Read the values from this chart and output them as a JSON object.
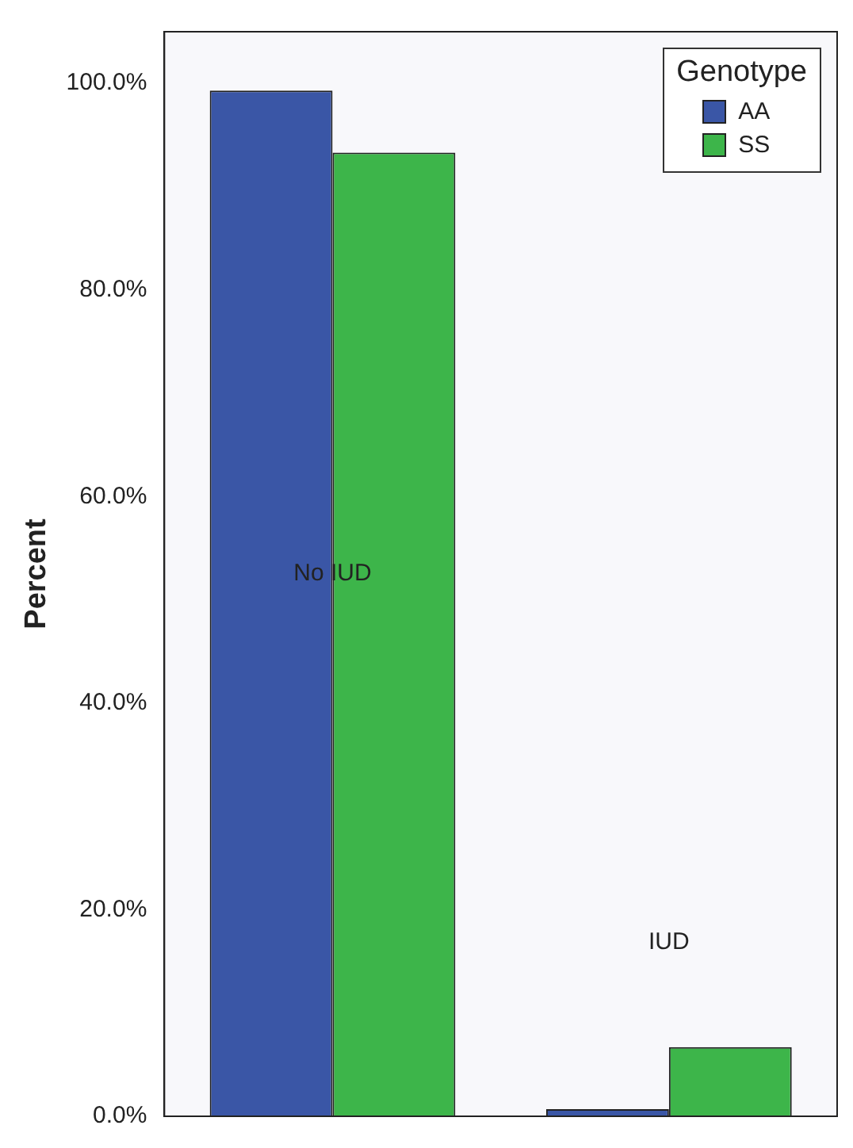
{
  "chart_data": {
    "type": "bar",
    "ylabel": "Percent",
    "legend_title": "Genotype",
    "legend": "top right",
    "categories": [
      "No IUD",
      "IUD"
    ],
    "series": [
      {
        "name": "AA",
        "color": "#3a56a6",
        "values": [
          99.3,
          0.7
        ]
      },
      {
        "name": "SS",
        "color": "#3db54a",
        "values": [
          93.3,
          6.7
        ]
      }
    ],
    "ylim": [
      0,
      105
    ],
    "yticks": [
      {
        "value": 0,
        "label": "0.0%"
      },
      {
        "value": 20,
        "label": "20.0%"
      },
      {
        "value": 40,
        "label": "40.0%"
      },
      {
        "value": 60,
        "label": "60.0%"
      },
      {
        "value": 80,
        "label": "80.0%"
      },
      {
        "value": 100,
        "label": "100.0%"
      }
    ]
  }
}
